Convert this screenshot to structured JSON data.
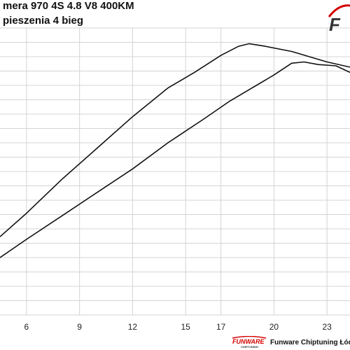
{
  "header": {
    "title_line_1": "mera 970 4S 4.8 V8 400KM",
    "title_line_2": "pieszenia 4 bieg"
  },
  "branding": {
    "logo_letter": "F",
    "footer_logo_text": "FUNWARE",
    "footer_logo_subtext": "CHIPTUNING",
    "footer_text": "Funware Chiptuning Łódź",
    "accent_color": "#d40000"
  },
  "chart_data": {
    "type": "line",
    "title": "",
    "xlabel": "",
    "ylabel": "",
    "x_ticks": [
      6,
      9,
      12,
      15,
      17,
      20,
      23
    ],
    "grid": true,
    "legend": "none",
    "series": [
      {
        "x": [
          4.5,
          6,
          8,
          10,
          12,
          14,
          15.5,
          17,
          18,
          18.6,
          19.5,
          21,
          22,
          23,
          24.3
        ],
        "y": [
          0.3,
          0.39,
          0.52,
          0.64,
          0.76,
          0.87,
          0.93,
          0.995,
          1.03,
          1.04,
          1.03,
          1.01,
          0.99,
          0.97,
          0.95
        ]
      },
      {
        "x": [
          4.5,
          6,
          8,
          10,
          12,
          14,
          16,
          17.5,
          19,
          20,
          21,
          21.7,
          22.5,
          23.5,
          24.3
        ],
        "y": [
          0.22,
          0.29,
          0.38,
          0.47,
          0.56,
          0.66,
          0.75,
          0.82,
          0.88,
          0.92,
          0.965,
          0.97,
          0.96,
          0.955,
          0.93
        ]
      }
    ]
  }
}
